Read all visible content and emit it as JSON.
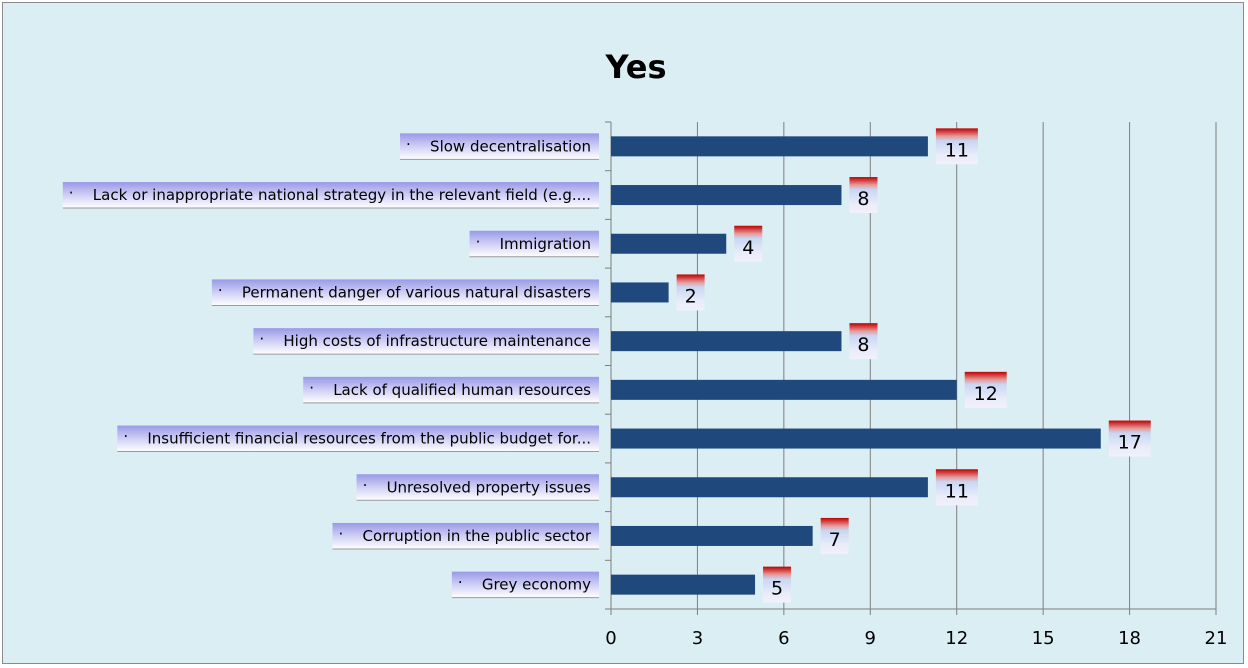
{
  "chart_data": {
    "type": "bar",
    "orientation": "horizontal",
    "title": "Yes",
    "categories": [
      "Slow decentralisation",
      "Lack or inappropriate national strategy in the relevant field (e.g....",
      "Immigration",
      "Permanent danger of various natural disasters",
      "High costs of infrastructure maintenance",
      "Lack of qualified human resources",
      "Insufficient financial resources from the public budget for...",
      "Unresolved property issues",
      "Corruption in the public sector",
      "Grey economy"
    ],
    "values": [
      11,
      8,
      4,
      2,
      8,
      12,
      17,
      11,
      7,
      5
    ],
    "data_labels": [
      "11",
      "8",
      "4",
      "2",
      "8",
      "12",
      "17",
      "11",
      "7",
      "5"
    ],
    "bullet": "·",
    "xticks": [
      "0",
      "3",
      "6",
      "9",
      "12",
      "15",
      "18",
      "21"
    ],
    "xlim": [
      0,
      21
    ],
    "xlabel": "",
    "ylabel": "",
    "grid": true,
    "legend": "none",
    "colors": {
      "background": "#daeef3",
      "bar": "#1f497d",
      "label_box_top": "#9999e8",
      "label_box_bottom": "#ffffff",
      "data_label_top": "#c00000",
      "gridline": "#7f7f7f"
    }
  }
}
